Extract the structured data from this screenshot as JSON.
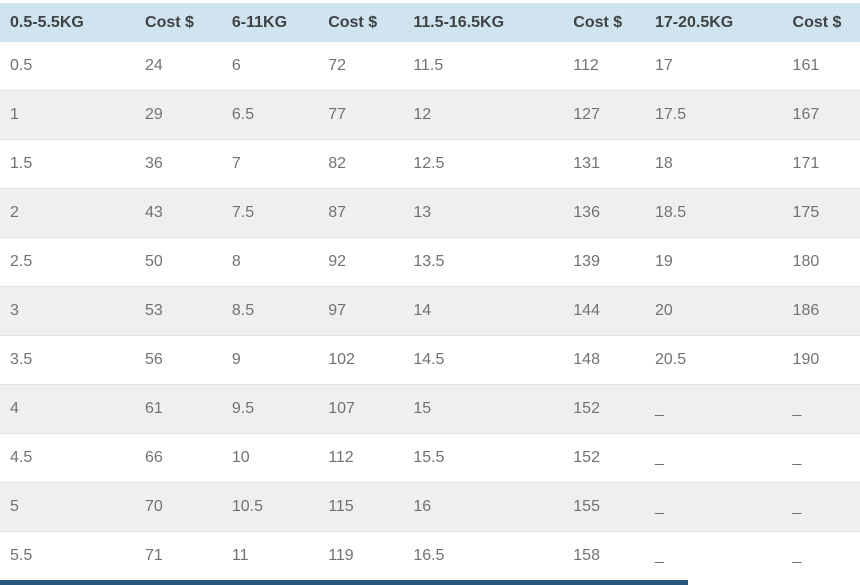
{
  "table": {
    "columns": [
      {
        "label": "0.5-5.5KG"
      },
      {
        "label": "Cost $"
      },
      {
        "label": "6-11KG"
      },
      {
        "label": "Cost $"
      },
      {
        "label": "11.5-16.5KG"
      },
      {
        "label": "Cost $"
      },
      {
        "label": "17-20.5KG"
      },
      {
        "label": "Cost $"
      }
    ],
    "rows": [
      [
        "0.5",
        "24",
        "6",
        "72",
        "11.5",
        "112",
        "17",
        "161"
      ],
      [
        "1",
        "29",
        "6.5",
        "77",
        "12",
        "127",
        "17.5",
        "167"
      ],
      [
        "1.5",
        "36",
        "7",
        "82",
        "12.5",
        "131",
        "18",
        "171"
      ],
      [
        "2",
        "43",
        "7.5",
        "87",
        "13",
        "136",
        "18.5",
        "175"
      ],
      [
        "2.5",
        "50",
        "8",
        "92",
        "13.5",
        "139",
        "19",
        "180"
      ],
      [
        "3",
        "53",
        "8.5",
        "97",
        "14",
        "144",
        "20",
        "186"
      ],
      [
        "3.5",
        "56",
        "9",
        "102",
        "14.5",
        "148",
        "20.5",
        "190"
      ],
      [
        "4",
        "61",
        "9.5",
        "107",
        "15",
        "152",
        "_",
        "_"
      ],
      [
        "4.5",
        "66",
        "10",
        "112",
        "15.5",
        "152",
        "_",
        "_"
      ],
      [
        "5",
        "70",
        "10.5",
        "115",
        "16",
        "155",
        "_",
        "_"
      ],
      [
        "5.5",
        "71",
        "11",
        "119",
        "16.5",
        "158",
        "_",
        "_"
      ]
    ]
  },
  "colors": {
    "header_bg": "#cfe4ef",
    "header_text": "#3f4345",
    "body_text": "#6f7375",
    "row_bg": "#ffffff",
    "row_alt_bg": "#efefef",
    "row_border": "#e4e4e4",
    "scrollbar_thumb": "#27567c"
  }
}
